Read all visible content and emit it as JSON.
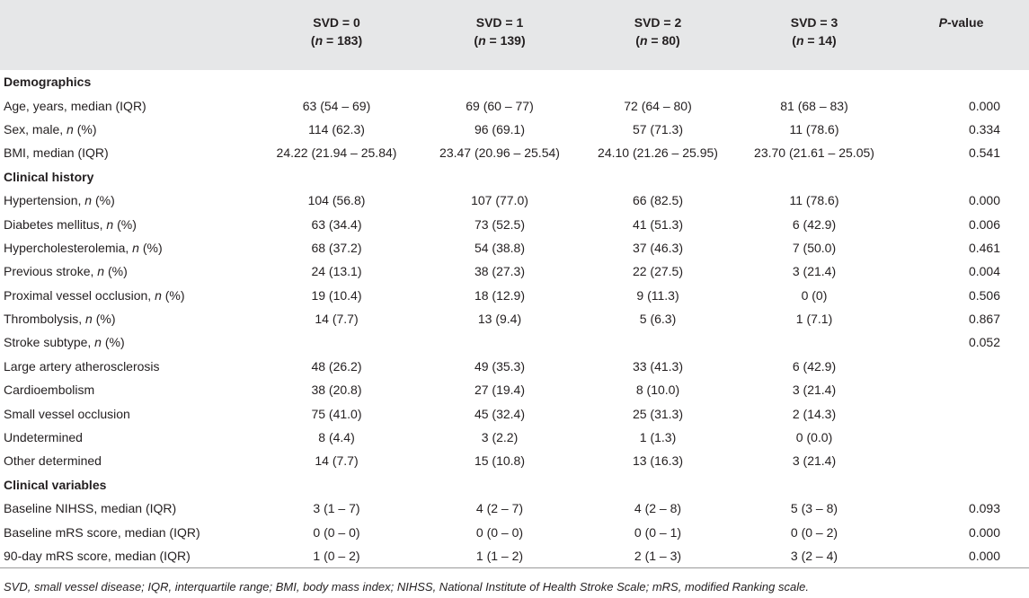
{
  "header": {
    "col1": {
      "line1": "SVD = 0",
      "n_label": "n",
      "n_value": " = 183)"
    },
    "col2": {
      "line1": "SVD = 1",
      "n_label": "n",
      "n_value": " = 139)"
    },
    "col3": {
      "line1": "SVD = 2",
      "n_label": "n",
      "n_value": " = 80)"
    },
    "col4": {
      "line1": "SVD = 3",
      "n_label": "n",
      "n_value": " = 14)"
    },
    "pvalue": {
      "p": "P",
      "rest": "-value"
    }
  },
  "rows": [
    {
      "type": "section",
      "label": "Demographics"
    },
    {
      "type": "data",
      "label": "Age, years, median (IQR)",
      "italic_n": false,
      "v0": "63 (54 – 69)",
      "v1": "69 (60 – 77)",
      "v2": "72 (64 – 80)",
      "v3": "81 (68 – 83)",
      "p": "0.000"
    },
    {
      "type": "data",
      "label": "Sex, male, ",
      "italic_n": true,
      "suffix": " (%)",
      "v0": "114 (62.3)",
      "v1": "96 (69.1)",
      "v2": "57 (71.3)",
      "v3": "11 (78.6)",
      "p": "0.334"
    },
    {
      "type": "data",
      "label": "BMI, median (IQR)",
      "italic_n": false,
      "v0": "24.22 (21.94 – 25.84)",
      "v1": "23.47 (20.96 – 25.54)",
      "v2": "24.10 (21.26 – 25.95)",
      "v3": "23.70 (21.61 – 25.05)",
      "p": "0.541"
    },
    {
      "type": "section",
      "label": "Clinical history"
    },
    {
      "type": "data",
      "label": "Hypertension, ",
      "italic_n": true,
      "suffix": " (%)",
      "v0": "104 (56.8)",
      "v1": "107 (77.0)",
      "v2": "66 (82.5)",
      "v3": "11 (78.6)",
      "p": "0.000"
    },
    {
      "type": "data",
      "label": "Diabetes mellitus, ",
      "italic_n": true,
      "suffix": " (%)",
      "v0": "63 (34.4)",
      "v1": "73 (52.5)",
      "v2": "41 (51.3)",
      "v3": "6 (42.9)",
      "p": "0.006"
    },
    {
      "type": "data",
      "label": "Hypercholesterolemia, ",
      "italic_n": true,
      "suffix": " (%)",
      "v0": "68 (37.2)",
      "v1": "54 (38.8)",
      "v2": "37 (46.3)",
      "v3": "7 (50.0)",
      "p": "0.461"
    },
    {
      "type": "data",
      "label": "Previous stroke, ",
      "italic_n": true,
      "suffix": " (%)",
      "v0": "24 (13.1)",
      "v1": "38 (27.3)",
      "v2": "22 (27.5)",
      "v3": "3 (21.4)",
      "p": "0.004"
    },
    {
      "type": "data",
      "label": "Proximal vessel occlusion, ",
      "italic_n": true,
      "suffix": " (%)",
      "v0": "19 (10.4)",
      "v1": "18 (12.9)",
      "v2": "9 (11.3)",
      "v3": "0 (0)",
      "p": "0.506"
    },
    {
      "type": "data",
      "label": "Thrombolysis, ",
      "italic_n": true,
      "suffix": " (%)",
      "v0": "14 (7.7)",
      "v1": "13 (9.4)",
      "v2": "5 (6.3)",
      "v3": "1 (7.1)",
      "p": "0.867"
    },
    {
      "type": "data",
      "label": "Stroke subtype, ",
      "italic_n": true,
      "suffix": " (%)",
      "v0": "",
      "v1": "",
      "v2": "",
      "v3": "",
      "p": "0.052"
    },
    {
      "type": "data",
      "label": "Large artery atherosclerosis",
      "italic_n": false,
      "v0": "48 (26.2)",
      "v1": "49 (35.3)",
      "v2": "33 (41.3)",
      "v3": "6 (42.9)",
      "p": ""
    },
    {
      "type": "data",
      "label": "Cardioembolism",
      "italic_n": false,
      "v0": "38 (20.8)",
      "v1": "27 (19.4)",
      "v2": "8 (10.0)",
      "v3": "3 (21.4)",
      "p": ""
    },
    {
      "type": "data",
      "label": "Small vessel occlusion",
      "italic_n": false,
      "v0": "75 (41.0)",
      "v1": "45 (32.4)",
      "v2": "25 (31.3)",
      "v3": "2 (14.3)",
      "p": ""
    },
    {
      "type": "data",
      "label": "Undetermined",
      "italic_n": false,
      "v0": "8 (4.4)",
      "v1": "3 (2.2)",
      "v2": "1 (1.3)",
      "v3": "0 (0.0)",
      "p": ""
    },
    {
      "type": "data",
      "label": "Other determined",
      "italic_n": false,
      "v0": "14 (7.7)",
      "v1": "15 (10.8)",
      "v2": "13 (16.3)",
      "v3": "3 (21.4)",
      "p": ""
    },
    {
      "type": "section",
      "label": "Clinical variables"
    },
    {
      "type": "data",
      "label": "Baseline NIHSS, median (IQR)",
      "italic_n": false,
      "v0": "3 (1 – 7)",
      "v1": "4 (2 – 7)",
      "v2": "4 (2 – 8)",
      "v3": "5 (3 – 8)",
      "p": "0.093"
    },
    {
      "type": "data",
      "label": "Baseline mRS score, median (IQR)",
      "italic_n": false,
      "v0": "0 (0 – 0)",
      "v1": "0 (0 – 0)",
      "v2": "0 (0 – 1)",
      "v3": "0 (0 – 2)",
      "p": "0.000"
    },
    {
      "type": "data",
      "label": "90-day mRS score, median (IQR)",
      "italic_n": false,
      "v0": "1 (0 – 2)",
      "v1": "1 (1 – 2)",
      "v2": "2 (1 – 3)",
      "v3": "3 (2 – 4)",
      "p": "0.000"
    }
  ],
  "footnote": "SVD, small vessel disease; IQR, interquartile range; BMI, body mass index; NIHSS, National Institute of Health Stroke Scale; mRS, modified Ranking scale.",
  "colors": {
    "header_bg": "#e6e7e8",
    "text": "#231f20",
    "rule": "#9a9a9a"
  }
}
